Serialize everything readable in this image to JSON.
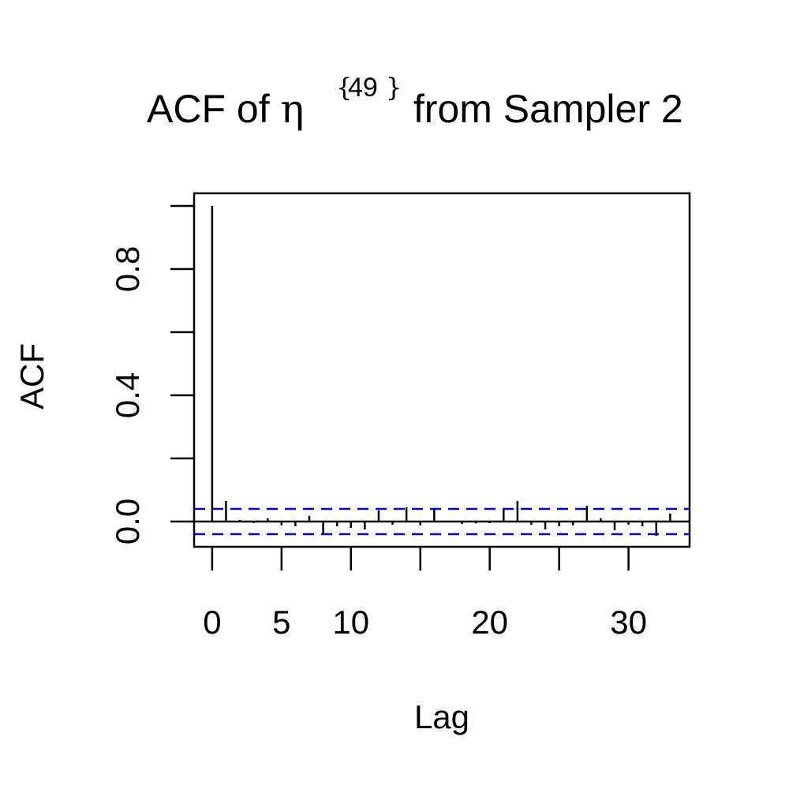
{
  "chart_data": {
    "type": "bar",
    "title_prefix": "ACF of ",
    "title_symbol": "η",
    "title_superscript": "49",
    "title_suffix": " from Sampler 2",
    "xlabel": "Lag",
    "ylabel": "ACF",
    "xlim": [
      -1.3,
      34.4
    ],
    "ylim": [
      -0.08,
      1.04
    ],
    "x_ticks": [
      0,
      5,
      10,
      15,
      20,
      25,
      30
    ],
    "x_tick_labels": [
      "0",
      "5",
      "10",
      "",
      "20",
      "",
      "30"
    ],
    "y_ticks": [
      0.0,
      0.2,
      0.4,
      0.6,
      0.8,
      1.0
    ],
    "y_tick_labels": [
      "0.0",
      "",
      "0.4",
      "",
      "0.8",
      ""
    ],
    "confidence_bound": 0.04,
    "grid": false,
    "colors": {
      "bars": "#000000",
      "confidence_lines": "#0000cc",
      "zero_line": "#000000"
    },
    "lags": [
      0,
      1,
      2,
      3,
      4,
      5,
      6,
      7,
      8,
      9,
      10,
      11,
      12,
      13,
      14,
      15,
      16,
      17,
      18,
      19,
      20,
      21,
      22,
      23,
      24,
      25,
      26,
      27,
      28,
      29,
      30,
      31,
      32,
      33
    ],
    "values": [
      1.0,
      0.065,
      0.005,
      -0.005,
      0.01,
      -0.012,
      -0.015,
      0.018,
      -0.038,
      -0.015,
      -0.02,
      -0.025,
      0.035,
      -0.01,
      0.045,
      -0.012,
      0.038,
      -0.003,
      -0.008,
      -0.006,
      -0.005,
      0.04,
      0.065,
      -0.01,
      -0.025,
      -0.015,
      -0.012,
      0.05,
      0.01,
      -0.028,
      -0.01,
      -0.015,
      -0.045,
      0.025
    ]
  }
}
